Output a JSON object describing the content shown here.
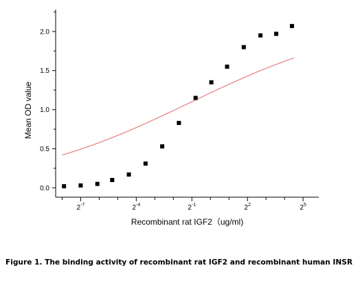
{
  "figure": {
    "caption": "Figure 1. The binding activity of recombinant rat IGF2 and recombinant human INSR"
  },
  "chart_data": {
    "type": "scatter",
    "xlabel": "Recombinant rat IGF2（ug/ml)",
    "ylabel": "Mean OD value",
    "x_scale": "log2",
    "xlim": [
      -8.35,
      5.85
    ],
    "ylim": [
      -0.12,
      2.28
    ],
    "x_ticks": [
      {
        "value": -7,
        "base": "2",
        "exp": "-7"
      },
      {
        "value": -4,
        "base": "2",
        "exp": "-4"
      },
      {
        "value": -1,
        "base": "2",
        "exp": "-1"
      },
      {
        "value": 2,
        "base": "2",
        "exp": "2"
      },
      {
        "value": 5,
        "base": "2",
        "exp": "5"
      }
    ],
    "x_minor_ticks": [
      -8,
      -6,
      -5,
      -3,
      -2,
      0,
      1,
      3,
      4
    ],
    "y_ticks": [
      "0.0",
      "0.5",
      "1.0",
      "1.5",
      "2.0"
    ],
    "y_minor_step": 0.25,
    "grid": false,
    "legend": "none",
    "series": [
      {
        "marker": "square",
        "color": "#000000",
        "x": [
          -7.9,
          -7.0,
          -6.1,
          -5.3,
          -4.4,
          -3.5,
          -2.6,
          -1.7,
          -0.8,
          0.05,
          0.9,
          1.8,
          2.7,
          3.55,
          4.4
        ],
        "y": [
          0.02,
          0.03,
          0.05,
          0.1,
          0.17,
          0.31,
          0.53,
          0.83,
          1.15,
          1.35,
          1.55,
          1.8,
          1.95,
          1.97,
          2.07
        ]
      }
    ],
    "fit": {
      "color": "#e87a7a",
      "bottom": 0.0,
      "top": 2.18,
      "x50": -1.1,
      "hill": 0.3
    }
  }
}
